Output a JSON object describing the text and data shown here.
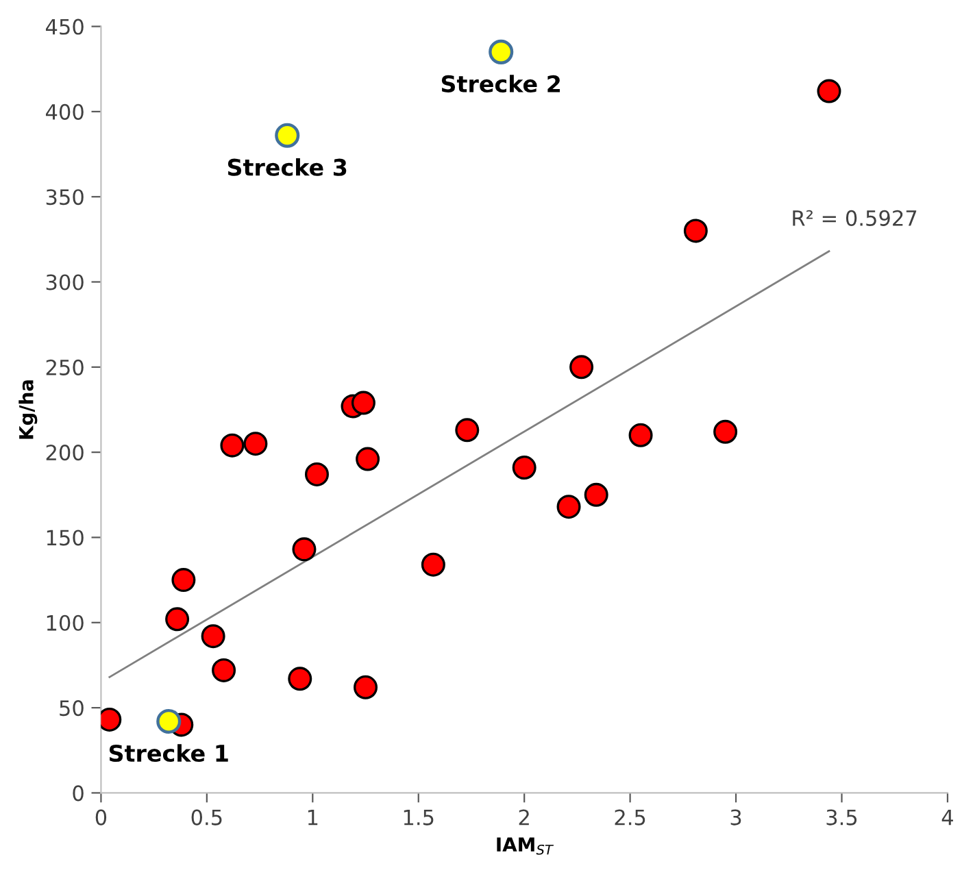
{
  "chart_data": {
    "type": "scatter",
    "xlabel": "IAM$_{ST}$",
    "ylabel": "Kg/ha",
    "xlim": [
      0,
      4
    ],
    "ylim": [
      0,
      450
    ],
    "xticks": [
      0,
      0.5,
      1,
      1.5,
      2,
      2.5,
      3,
      3.5,
      4
    ],
    "yticks": [
      0,
      50,
      100,
      150,
      200,
      250,
      300,
      350,
      400,
      450
    ],
    "grid": false,
    "legend": false,
    "marker": "circle",
    "series": [
      {
        "color": "#ff0000",
        "x": [
          0.04,
          0.32,
          0.38,
          0.36,
          0.39,
          0.53,
          0.58,
          0.62,
          0.73,
          0.94,
          0.96,
          1.02,
          1.19,
          1.24,
          1.26,
          1.25,
          1.57,
          1.73,
          2.0,
          2.21,
          2.27,
          2.34,
          2.55,
          2.81,
          2.95,
          3.44
        ],
        "values": [
          43,
          null,
          40,
          102,
          125,
          92,
          72,
          204,
          205,
          67,
          143,
          187,
          227,
          229,
          196,
          62,
          134,
          213,
          191,
          168,
          250,
          175,
          210,
          330,
          212,
          412
        ]
      },
      {
        "color": "#ffff00",
        "x": [
          0.32,
          0.88,
          1.89
        ],
        "values": [
          42,
          386,
          435
        ]
      },
      {
        "type": "line",
        "color": "#808080",
        "line_style": "solid",
        "marker": "none",
        "x": [
          0.04,
          3.44
        ],
        "values": [
          68,
          318
        ]
      }
    ],
    "annotations": [
      {
        "text": "Strecke 1",
        "x": 0.32,
        "y": 42
      },
      {
        "text": "Strecke 3",
        "x": 0.88,
        "y": 386
      },
      {
        "text": "Strecke 2",
        "x": 1.89,
        "y": 435
      },
      "R² = 0.5927"
    ]
  }
}
